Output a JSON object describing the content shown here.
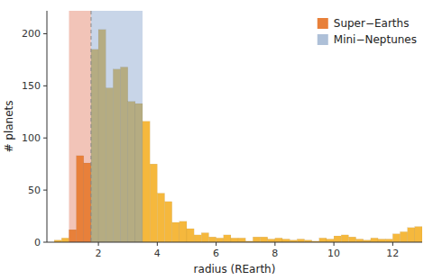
{
  "chart_data": {
    "type": "histogram",
    "xlabel": "radius (REarth)",
    "ylabel": "# planets",
    "bins": [
      0.5,
      0.75,
      1.0,
      1.25,
      1.5,
      1.75,
      2.0,
      2.25,
      2.5,
      2.75,
      3.0,
      3.25,
      3.5,
      3.75,
      4.0,
      4.25,
      4.5,
      4.75,
      5.0,
      5.25,
      5.5,
      5.75,
      6.0,
      6.25,
      6.5,
      6.75,
      7.0,
      7.25,
      7.5,
      7.75,
      8.0,
      8.25,
      8.5,
      8.75,
      9.0,
      9.25,
      9.5,
      9.75,
      10.0,
      10.25,
      10.5,
      10.75,
      11.0,
      11.25,
      11.5,
      11.75,
      12.0,
      12.25,
      12.5,
      12.75,
      13.0
    ],
    "values": [
      2,
      4,
      12,
      83,
      76,
      185,
      204,
      148,
      166,
      168,
      135,
      133,
      116,
      75,
      47,
      39,
      19,
      20,
      13,
      7,
      9,
      5,
      4,
      7,
      4,
      4,
      1,
      5,
      5,
      3,
      4,
      3,
      2,
      3,
      2,
      1,
      4,
      3,
      6,
      7,
      5,
      3,
      2,
      4,
      3,
      3,
      8,
      10,
      14,
      15
    ],
    "colors": [
      "#f5b83d",
      "#f5b83d",
      "#e8803a",
      "#e8803a",
      "#e8803a",
      "#b5ac82",
      "#b5ac82",
      "#b5ac82",
      "#b5ac82",
      "#b5ac82",
      "#b5ac82",
      "#b5ac82",
      "#f5b83d",
      "#f5b83d",
      "#f5b83d",
      "#f5b83d",
      "#f5b83d",
      "#f5b83d",
      "#f5b83d",
      "#f5b83d",
      "#f5b83d",
      "#f5b83d",
      "#f5b83d",
      "#f5b83d",
      "#f5b83d",
      "#f5b83d",
      "#f5b83d",
      "#f5b83d",
      "#f5b83d",
      "#f5b83d",
      "#f5b83d",
      "#f5b83d",
      "#f5b83d",
      "#f5b83d",
      "#f5b83d",
      "#f5b83d",
      "#f5b83d",
      "#f5b83d",
      "#f5b83d",
      "#f5b83d",
      "#f5b83d",
      "#f5b83d",
      "#f5b83d",
      "#f5b83d",
      "#f5b83d",
      "#f5b83d",
      "#f5b83d",
      "#f5b83d",
      "#f5b83d",
      "#f5b83d"
    ],
    "regions": [
      {
        "name": "Super−Earths",
        "range": [
          1.0,
          1.75
        ],
        "shade_color": "#f2c4b8",
        "color": "#e8803a"
      },
      {
        "name": "Mini−Neptunes",
        "range": [
          1.75,
          3.5
        ],
        "shade_color": "#c8d5e8",
        "color": "#aec0d8"
      }
    ],
    "vlines": [
      {
        "x": 1.75,
        "line_style": "dashed",
        "color": "#888888"
      }
    ],
    "xlim": [
      0.25,
      13.0
    ],
    "xticks": [
      2,
      4,
      6,
      8,
      10,
      12
    ],
    "ylim": [
      0,
      222
    ],
    "yticks": [
      0,
      50,
      100,
      150,
      200
    ],
    "grid": false,
    "legend": "upper right"
  }
}
